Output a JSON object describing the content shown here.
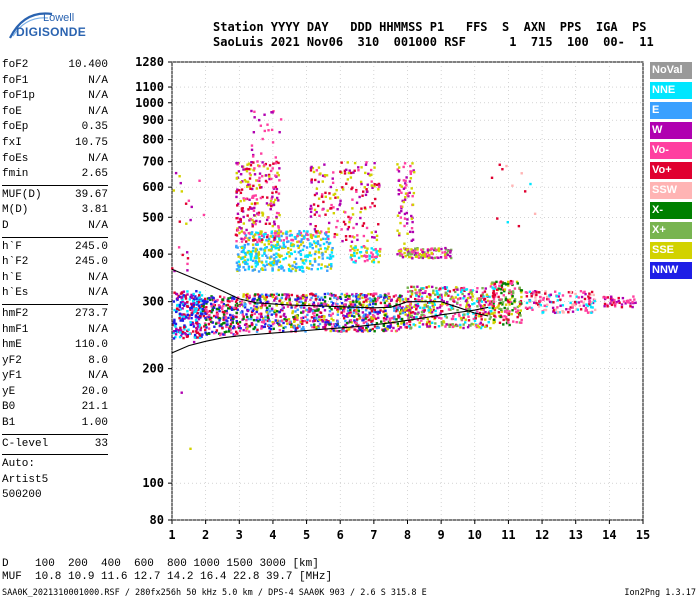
{
  "logo": {
    "line1": "Lowell",
    "line2": "DIGISONDE"
  },
  "header": {
    "line1": "Station YYYY DAY   DDD HHMMSS P1   FFS  S  AXN  PPS  IGA  PS",
    "line2": "SaoLuis 2021 Nov06  310  001000 RSF      1  715  100  00-  11"
  },
  "params_group1": [
    {
      "name": "foF2",
      "value": "10.400"
    },
    {
      "name": "foF1",
      "value": "N/A"
    },
    {
      "name": "foF1p",
      "value": "N/A"
    },
    {
      "name": "foE",
      "value": "N/A"
    },
    {
      "name": "foEp",
      "value": "0.35"
    },
    {
      "name": "fxI",
      "value": "10.75"
    },
    {
      "name": "foEs",
      "value": "N/A"
    },
    {
      "name": "fmin",
      "value": "2.65"
    }
  ],
  "params_group2": [
    {
      "name": "MUF(D)",
      "value": "39.67"
    },
    {
      "name": "M(D)",
      "value": "3.81"
    },
    {
      "name": "D",
      "value": "N/A"
    }
  ],
  "params_group3": [
    {
      "name": "h`F",
      "value": "245.0"
    },
    {
      "name": "h`F2",
      "value": "245.0"
    },
    {
      "name": "h`E",
      "value": "N/A"
    },
    {
      "name": "h`Es",
      "value": "N/A"
    }
  ],
  "params_group4": [
    {
      "name": "hmF2",
      "value": "273.7"
    },
    {
      "name": "hmF1",
      "value": "N/A"
    },
    {
      "name": "hmE",
      "value": "110.0"
    },
    {
      "name": "yF2",
      "value": "8.0"
    },
    {
      "name": "yF1",
      "value": "N/A"
    },
    {
      "name": "yE",
      "value": "20.0"
    },
    {
      "name": "B0",
      "value": "21.1"
    },
    {
      "name": "B1",
      "value": "1.00"
    }
  ],
  "clevel": {
    "name": "C-level",
    "value": "33"
  },
  "auto": [
    "Auto:",
    "Artist5",
    "500200"
  ],
  "muf_table": {
    "row1": "D    100  200  400  600  800 1000 1500 3000 [km]",
    "row2": "MUF  10.8 10.9 11.6 12.7 14.2 16.4 22.8 39.7 [MHz]"
  },
  "footer": "SAA0K_2021310001000.RSF / 280fx256h 50 kHz 5.0 km / DPS-4 SAA0K 903 / 2.6 S 315.8 E",
  "version": "Ion2Png 1.3.17",
  "legend": [
    {
      "label": "NoVal",
      "color": "#999999"
    },
    {
      "label": "NNE",
      "color": "#00e6ff"
    },
    {
      "label": "E",
      "color": "#3aa0ff"
    },
    {
      "label": "W",
      "color": "#b000b0"
    },
    {
      "label": "Vo-",
      "color": "#ff3fa0"
    },
    {
      "label": "Vo+",
      "color": "#e00030"
    },
    {
      "label": "SSW",
      "color": "#ffb4b4"
    },
    {
      "label": "X-",
      "color": "#008000"
    },
    {
      "label": "X+",
      "color": "#78b450"
    },
    {
      "label": "SSE",
      "color": "#d2d200"
    },
    {
      "label": "NNW",
      "color": "#1e1ee6"
    }
  ],
  "chart_data": {
    "type": "scatter",
    "title": "",
    "xlabel": "",
    "ylabel": "",
    "x_ticks": [
      1,
      2,
      3,
      4,
      5,
      6,
      7,
      8,
      9,
      10,
      11,
      12,
      13,
      14,
      15
    ],
    "y_ticks": [
      80,
      100,
      200,
      300,
      400,
      500,
      600,
      700,
      800,
      900,
      1000,
      1100,
      1280
    ],
    "xlim": [
      1,
      15
    ],
    "ylim": [
      80,
      1280
    ],
    "series": [
      {
        "color": "#000000",
        "x": [
          1.0,
          1.5,
          2.0,
          2.5,
          3.0,
          3.5,
          4.0,
          4.5,
          5.0,
          5.5,
          6.0,
          6.5,
          7.0,
          7.5,
          8.0,
          8.5,
          9.0,
          9.5,
          10.0,
          10.4
        ],
        "y": [
          220,
          230,
          236,
          241,
          244,
          246,
          248,
          250,
          252,
          254,
          256,
          258,
          261,
          264,
          268,
          272,
          277,
          281,
          285,
          290
        ]
      },
      {
        "color": "#000000",
        "x": [
          1.0,
          1.5,
          2.0,
          2.5,
          3.0,
          3.5,
          4.0,
          4.5,
          5.0,
          5.5,
          6.0,
          6.5,
          7.0,
          7.5,
          8.0,
          8.5,
          9.0,
          9.5,
          10.0,
          10.4
        ],
        "y": [
          365,
          350,
          335,
          320,
          305,
          298,
          296,
          294,
          293,
          292,
          291,
          290,
          289,
          290,
          300,
          300,
          300,
          290,
          280,
          275
        ]
      }
    ],
    "clusters": [
      {
        "x": [
          1.05,
          1.9
        ],
        "y": [
          240,
          320
        ],
        "n": 240,
        "colors": [
          "#b000b0",
          "#1e1ee6",
          "#e00030",
          "#00e6ff"
        ]
      },
      {
        "x": [
          1.9,
          3.0
        ],
        "y": [
          245,
          310
        ],
        "n": 220,
        "colors": [
          "#1e1ee6",
          "#e00030",
          "#ff3fa0",
          "#008000"
        ]
      },
      {
        "x": [
          3.0,
          8.0
        ],
        "y": [
          250,
          315
        ],
        "n": 900,
        "colors": [
          "#e00030",
          "#ff3fa0",
          "#1e1ee6",
          "#b000b0",
          "#008000",
          "#d2d200",
          "#3aa0ff"
        ]
      },
      {
        "x": [
          8.0,
          10.6
        ],
        "y": [
          255,
          330
        ],
        "n": 420,
        "colors": [
          "#e00030",
          "#ff3fa0",
          "#b000b0",
          "#78b450",
          "#00e6ff",
          "#d2d200"
        ]
      },
      {
        "x": [
          10.5,
          11.4
        ],
        "y": [
          260,
          340
        ],
        "n": 160,
        "colors": [
          "#e00030",
          "#ff3fa0",
          "#78b450",
          "#d2d200",
          "#008000"
        ]
      },
      {
        "x": [
          11.5,
          13.6
        ],
        "y": [
          280,
          320
        ],
        "n": 150,
        "colors": [
          "#ff3fa0",
          "#00e6ff",
          "#b000b0",
          "#e00030",
          "#ffb4b4"
        ]
      },
      {
        "x": [
          13.8,
          14.8
        ],
        "y": [
          290,
          310
        ],
        "n": 45,
        "colors": [
          "#e00030",
          "#ff3fa0",
          "#b000b0"
        ]
      },
      {
        "x": [
          2.9,
          5.8
        ],
        "y": [
          360,
          430
        ],
        "n": 300,
        "colors": [
          "#00e6ff",
          "#3aa0ff",
          "#d2d200"
        ]
      },
      {
        "x": [
          3.0,
          5.7
        ],
        "y": [
          430,
          460
        ],
        "n": 140,
        "colors": [
          "#00e6ff",
          "#3aa0ff",
          "#d2d200",
          "#ff3fa0"
        ]
      },
      {
        "x": [
          7.7,
          9.3
        ],
        "y": [
          390,
          415
        ],
        "n": 110,
        "colors": [
          "#d2d200",
          "#ff3fa0",
          "#b000b0",
          "#78b450"
        ]
      },
      {
        "x": [
          6.3,
          7.2
        ],
        "y": [
          380,
          420
        ],
        "n": 60,
        "colors": [
          "#d2d200",
          "#ff3fa0",
          "#00e6ff"
        ]
      },
      {
        "x": [
          2.9,
          4.2
        ],
        "y": [
          430,
          700
        ],
        "n": 220,
        "colors": [
          "#b000b0",
          "#ff3fa0",
          "#e00030",
          "#d2d200"
        ]
      },
      {
        "x": [
          5.1,
          7.2
        ],
        "y": [
          430,
          700
        ],
        "n": 180,
        "colors": [
          "#b000b0",
          "#ff3fa0",
          "#d2d200",
          "#e00030"
        ]
      },
      {
        "x": [
          7.7,
          8.2
        ],
        "y": [
          400,
          700
        ],
        "n": 80,
        "colors": [
          "#b000b0",
          "#ff3fa0",
          "#d2d200"
        ]
      },
      {
        "x": [
          3.2,
          4.3
        ],
        "y": [
          700,
          1000
        ],
        "n": 25,
        "colors": [
          "#b000b0",
          "#ff3fa0"
        ]
      },
      {
        "x": [
          1.0,
          2.0
        ],
        "y": [
          100,
          660
        ],
        "n": 25,
        "colors": [
          "#e00030",
          "#ff3fa0",
          "#d2d200",
          "#b000b0"
        ]
      },
      {
        "x": [
          10.5,
          11.8
        ],
        "y": [
          420,
          700
        ],
        "n": 12,
        "colors": [
          "#00e6ff",
          "#e00030",
          "#ffb4b4"
        ]
      }
    ]
  }
}
